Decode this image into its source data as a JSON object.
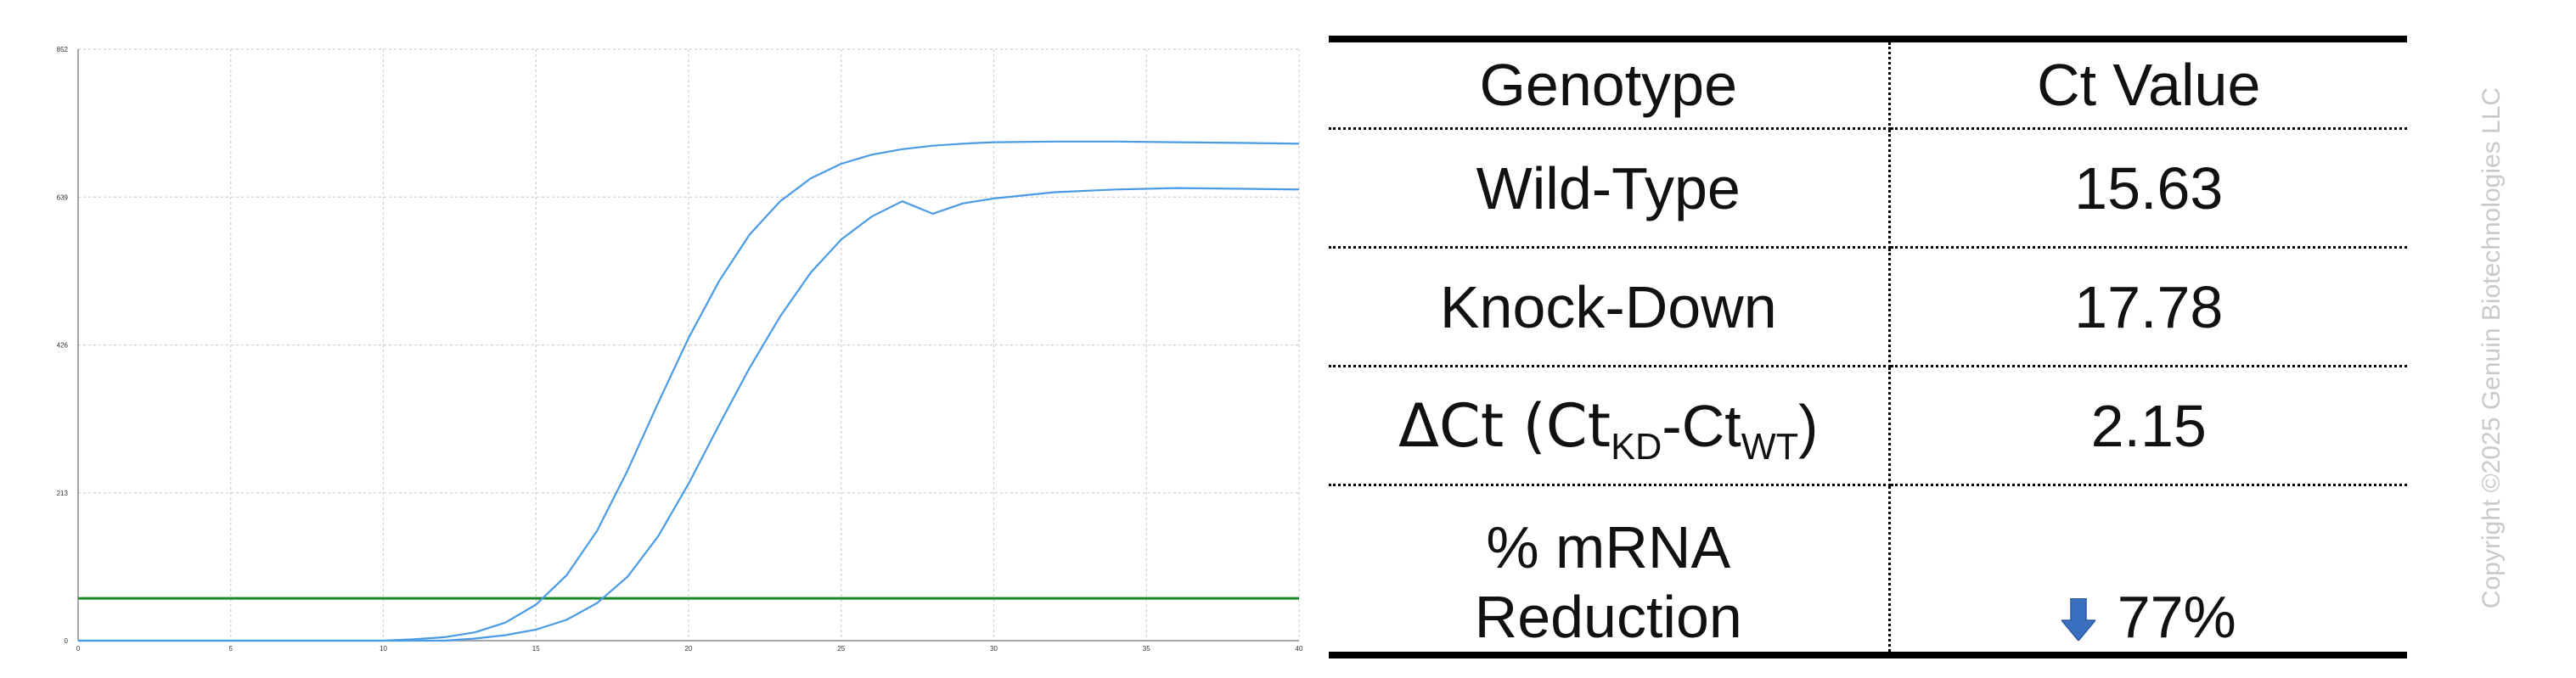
{
  "chart_data": {
    "type": "line",
    "title": "",
    "xlabel": "",
    "ylabel": "",
    "xlim": [
      0,
      40
    ],
    "ylim": [
      0,
      852
    ],
    "x_ticks": [
      0,
      5,
      10,
      15,
      20,
      25,
      30,
      35,
      40
    ],
    "y_ticks": [
      0,
      213,
      426,
      639,
      852
    ],
    "grid": true,
    "threshold": {
      "y": 61,
      "color": "#1a8a2a"
    },
    "series": [
      {
        "color": "#4a9be6",
        "x": [
          0,
          10,
          11,
          12,
          13,
          14,
          15,
          16,
          17,
          18,
          19,
          20,
          21,
          22,
          23,
          24,
          25,
          26,
          27,
          28,
          29,
          30,
          32,
          34,
          36,
          38,
          40
        ],
        "y": [
          0,
          0,
          2,
          5,
          12,
          26,
          52,
          94,
          158,
          245,
          342,
          436,
          518,
          585,
          633,
          666,
          687,
          700,
          708,
          713,
          716,
          718,
          719,
          719,
          718,
          717,
          716
        ]
      },
      {
        "color": "#4a9be6",
        "x": [
          0,
          12,
          13,
          14,
          15,
          16,
          17,
          18,
          19,
          20,
          21,
          22,
          23,
          24,
          25,
          26,
          27,
          28,
          29,
          30,
          32,
          34,
          36,
          38,
          40
        ],
        "y": [
          0,
          0,
          3,
          8,
          16,
          30,
          54,
          92,
          150,
          226,
          311,
          393,
          467,
          530,
          578,
          611,
          633,
          615,
          630,
          637,
          646,
          650,
          652,
          651,
          650
        ]
      }
    ]
  },
  "table": {
    "headers": [
      "Genotype",
      "Ct Value"
    ],
    "rows": [
      {
        "label": "Wild-Type",
        "value": "15.63"
      },
      {
        "label": "Knock-Down",
        "value": "17.78"
      },
      {
        "label_delta": "ΔCt (Ct",
        "label_sub1": "KD",
        "label_mid": "-Ct",
        "label_sub2": "WT",
        "label_end": ")",
        "value": "2.15"
      },
      {
        "label_line1": "% mRNA",
        "label_line2": "Reduction",
        "value": "77%",
        "icon": "down-arrow-icon"
      }
    ]
  },
  "copyright": "Copyright ©2025 Genuin Biotechnologies LLC",
  "colors": {
    "curve": "#4a9be6",
    "threshold": "#1a8a2a",
    "arrow": "#3a6fbf",
    "grid": "#cfcfcf"
  }
}
